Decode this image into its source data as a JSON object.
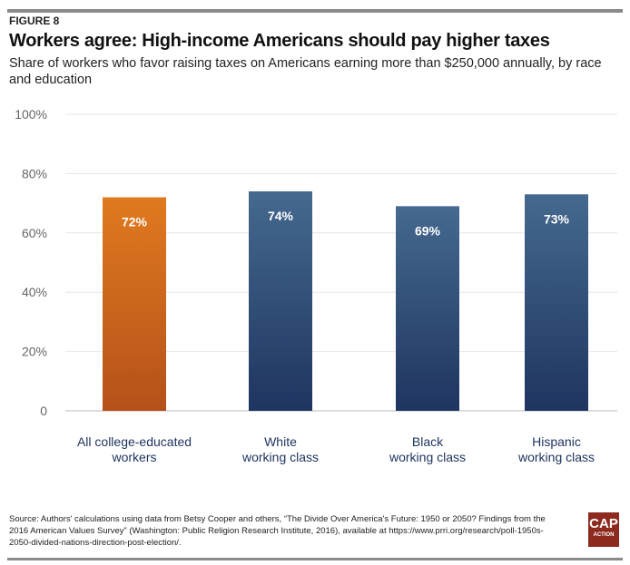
{
  "figure_label": "FIGURE 8",
  "title": "Workers agree: High-income Americans should pay higher taxes",
  "subtitle": "Share of workers who favor raising taxes on Americans earning more than $250,000 annually, by race and education",
  "source": "Source: Authors' calculations using data from Betsy Cooper and others, “The Divide Over America's Future: 1950 or 2050? Findings from the 2016 American Values Survey” (Washington: Public Religion Research Institute, 2016), available at https://www.prri.org/research/poll-1950s-2050-divided-nations-direction-post-election/.",
  "logo": {
    "line1": "CAP",
    "line2": "ACTION"
  },
  "chart_data": {
    "type": "bar",
    "categories": [
      [
        "All college-educated",
        "workers"
      ],
      [
        "White",
        "working class"
      ],
      [
        "Black",
        "working class"
      ],
      [
        "Hispanic",
        "working class"
      ]
    ],
    "values": [
      72,
      74,
      69,
      73
    ],
    "data_labels": [
      "72%",
      "74%",
      "69%",
      "73%"
    ],
    "colors": [
      [
        "#e07a1f",
        "#b5501a"
      ],
      [
        "#45698f",
        "#1e3560"
      ],
      [
        "#45698f",
        "#1e3560"
      ],
      [
        "#45698f",
        "#1e3560"
      ]
    ],
    "yticks": [
      "0",
      "20%",
      "40%",
      "60%",
      "80%",
      "100%"
    ],
    "ylim": [
      0,
      100
    ],
    "grid": true
  }
}
